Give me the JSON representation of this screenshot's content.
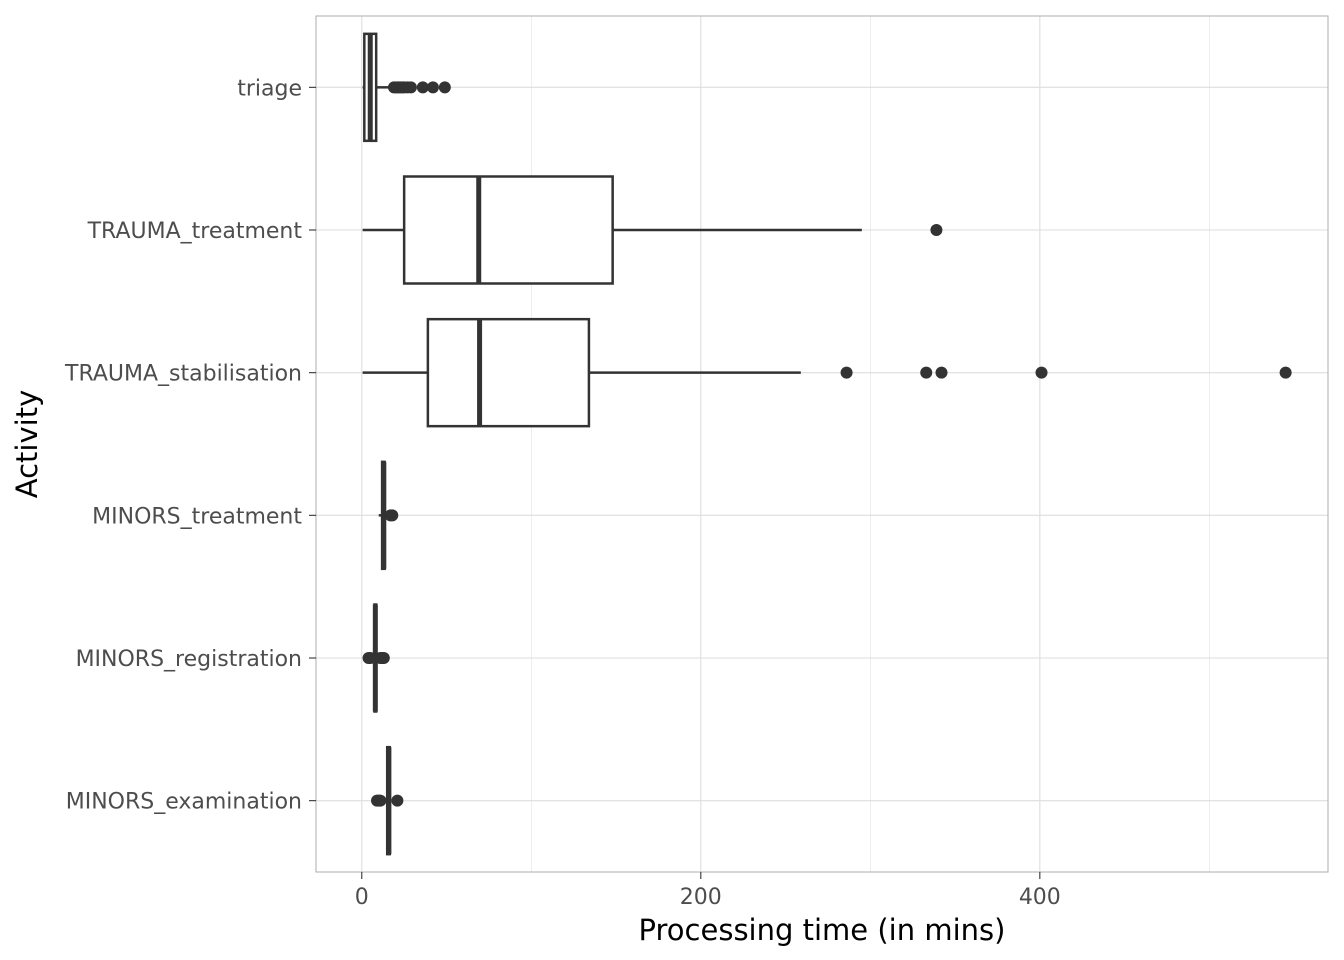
{
  "chart_data": {
    "type": "boxplot",
    "orientation": "horizontal",
    "title": "",
    "xlabel": "Processing time (in mins)",
    "ylabel": "Activity",
    "xlim": [
      -27,
      570
    ],
    "x_ticks": [
      0,
      200,
      400
    ],
    "x_tick_labels": [
      "0",
      "200",
      "400"
    ],
    "x_minor_ticks": [
      100,
      300,
      500
    ],
    "grid": true,
    "theme": "light",
    "colors": {
      "box_line": "#333333",
      "grid": "#dedede",
      "panel_border": "#b3b3b3",
      "box_fill": "#ffffff"
    },
    "categories": [
      "triage",
      "TRAUMA_treatment",
      "TRAUMA_stabilisation",
      "MINORS_treatment",
      "MINORS_registration",
      "MINORS_examination"
    ],
    "boxes": [
      {
        "category": "triage",
        "min": 0.5,
        "q1": 1.5,
        "median": 5,
        "q3": 8.5,
        "max": 16.5,
        "outliers": [
          19,
          20,
          21,
          22,
          23,
          24,
          25,
          27,
          29,
          36,
          42,
          49
        ]
      },
      {
        "category": "TRAUMA_treatment",
        "min": 0.5,
        "q1": 25,
        "median": 69,
        "q3": 148,
        "max": 295,
        "outliers": [
          339
        ]
      },
      {
        "category": "TRAUMA_stabilisation",
        "min": 0.5,
        "q1": 39,
        "median": 69.5,
        "q3": 134,
        "max": 259,
        "outliers": [
          286,
          333,
          342,
          401,
          545
        ]
      },
      {
        "category": "MINORS_treatment",
        "min": 10,
        "q1": 12,
        "median": 13,
        "q3": 13.5,
        "max": 14,
        "outliers": [
          17,
          18
        ]
      },
      {
        "category": "MINORS_registration",
        "min": 6.5,
        "q1": 7.5,
        "median": 8,
        "q3": 8.5,
        "max": 10,
        "outliers": [
          4,
          5,
          11,
          12,
          13
        ]
      },
      {
        "category": "MINORS_examination",
        "min": 14,
        "q1": 15,
        "median": 16,
        "q3": 16.5,
        "max": 17,
        "outliers": [
          9,
          10,
          11,
          21
        ]
      }
    ]
  }
}
